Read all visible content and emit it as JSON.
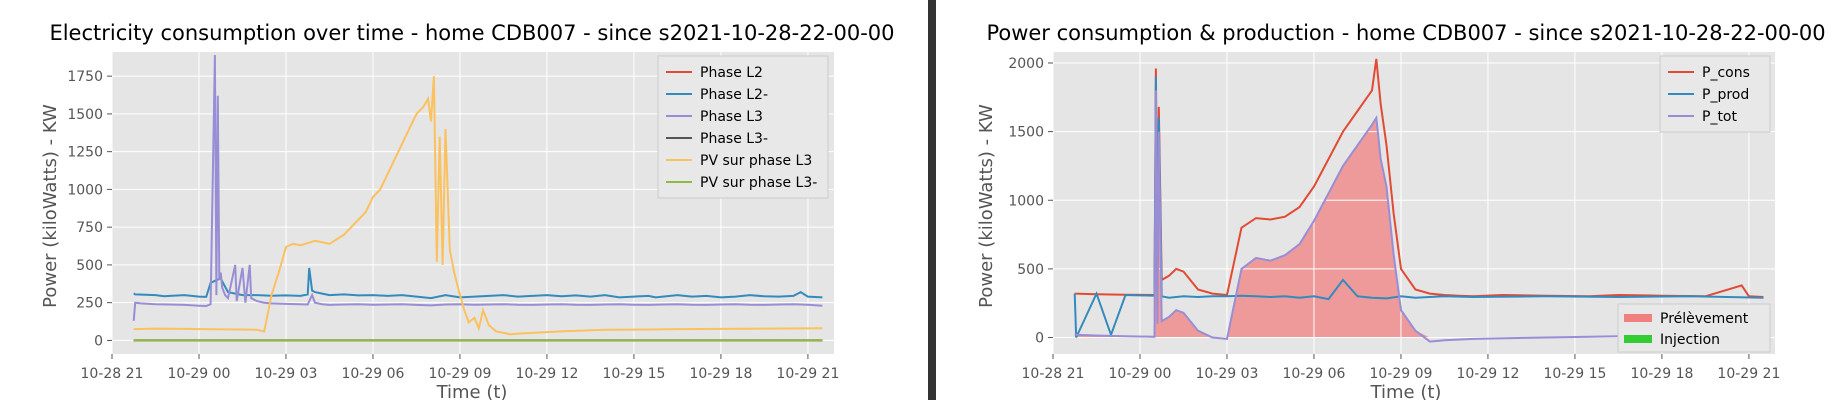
{
  "colors": {
    "background": "#e5e5e5",
    "grid": "#ffffff",
    "divider": "#333333"
  },
  "chart_data": [
    {
      "type": "line",
      "title": "Electricity consumption over time - home CDB007 - since s2021-10-28-22-00-00",
      "xlabel": "Time (t)",
      "ylabel": "Power (kiloWatts) - KW",
      "grid": true,
      "legend": "top-right",
      "x_ticks": [
        "10-28 21",
        "10-29 00",
        "10-29 03",
        "10-29 06",
        "10-29 09",
        "10-29 12",
        "10-29 15",
        "10-29 18",
        "10-29 21"
      ],
      "y_ticks": [
        "0",
        "250",
        "500",
        "750",
        "1000",
        "1250",
        "1500",
        "1750"
      ],
      "x_range_hours": [
        21.0,
        70.8
      ],
      "y_range": [
        -90,
        1910
      ],
      "series": [
        {
          "name": "Phase L2",
          "color": "#e24a33",
          "x": [
            22.5,
            70
          ],
          "y": [
            0,
            0
          ]
        },
        {
          "name": "Phase L2-",
          "color": "#348abd",
          "x": [
            22.5,
            22.6,
            24,
            24.6,
            25,
            26,
            27,
            27.5,
            27.8,
            28,
            28.1,
            28.2,
            28.5,
            29,
            30,
            31,
            32,
            33,
            34,
            34.5,
            34.6,
            34.8,
            35,
            35.5,
            36,
            37,
            38,
            39,
            40,
            41,
            42,
            43,
            44,
            45,
            46,
            47,
            48,
            49,
            50,
            51,
            52,
            53,
            54,
            55,
            56,
            57,
            58,
            58.5,
            59,
            60,
            61,
            62,
            63,
            64,
            65,
            66,
            67,
            68,
            68.5,
            69,
            70
          ],
          "y": [
            312,
            305,
            300,
            292,
            295,
            300,
            290,
            288,
            380,
            390,
            395,
            400,
            410,
            320,
            300,
            300,
            296,
            298,
            295,
            305,
            480,
            330,
            320,
            310,
            300,
            305,
            298,
            300,
            295,
            300,
            290,
            280,
            300,
            285,
            290,
            295,
            300,
            290,
            295,
            300,
            292,
            298,
            290,
            300,
            285,
            290,
            295,
            285,
            290,
            300,
            290,
            295,
            285,
            290,
            300,
            292,
            290,
            295,
            320,
            290,
            285
          ]
        },
        {
          "name": "Phase L3",
          "color": "#988ed5",
          "x": [
            22.5,
            22.6,
            23,
            24,
            25,
            26,
            27,
            27.5,
            27.8,
            28.1,
            28.2,
            28.3,
            28.4,
            28.5,
            28.6,
            28.8,
            29,
            29.5,
            29.6,
            30,
            30.2,
            30.5,
            30.6,
            31,
            31.5,
            32,
            33,
            34,
            34.5,
            34.8,
            35,
            35.5,
            36,
            37,
            38,
            39,
            40,
            41,
            42,
            43,
            44,
            45,
            46,
            47,
            48,
            49,
            50,
            51,
            52,
            53,
            54,
            55,
            56,
            57,
            58,
            59,
            60,
            61,
            62,
            63,
            64,
            65,
            66,
            67,
            68,
            69,
            70
          ],
          "y": [
            130,
            250,
            245,
            240,
            238,
            235,
            230,
            228,
            240,
            1890,
            300,
            1620,
            400,
            450,
            350,
            300,
            280,
            500,
            260,
            480,
            250,
            500,
            280,
            260,
            250,
            245,
            242,
            240,
            238,
            300,
            250,
            240,
            235,
            238,
            240,
            236,
            238,
            240,
            235,
            232,
            238,
            240,
            236,
            238,
            240,
            236,
            235,
            238,
            240,
            236,
            235,
            238,
            240,
            236,
            235,
            238,
            240,
            236,
            235,
            238,
            240,
            236,
            235,
            238,
            240,
            236,
            230
          ]
        },
        {
          "name": "Phase L3-",
          "color": "#555555",
          "x": [
            22.5,
            70
          ],
          "y": [
            0,
            0
          ]
        },
        {
          "name": "PV sur phase L3",
          "color": "#fbc15e",
          "x": [
            22.5,
            24,
            26,
            28,
            30,
            31,
            31.5,
            32,
            32.5,
            32.8,
            33,
            33.5,
            34,
            35,
            36,
            37,
            38,
            38.5,
            39,
            39.5,
            40,
            40.5,
            41,
            41.5,
            42,
            42.5,
            42.8,
            43,
            43.2,
            43.4,
            43.6,
            43.8,
            44,
            44.3,
            44.6,
            45,
            45.3,
            45.6,
            46,
            46.3,
            46.6,
            47,
            47.5,
            48,
            48.5,
            49,
            50,
            52,
            55,
            58,
            60,
            63,
            66,
            70
          ],
          "y": [
            75,
            78,
            76,
            74,
            72,
            70,
            60,
            300,
            450,
            550,
            620,
            640,
            630,
            660,
            640,
            700,
            800,
            850,
            950,
            1000,
            1100,
            1200,
            1300,
            1400,
            1500,
            1550,
            1600,
            1450,
            1750,
            520,
            1350,
            500,
            1400,
            600,
            450,
            300,
            200,
            120,
            150,
            80,
            200,
            100,
            60,
            50,
            40,
            45,
            50,
            60,
            70,
            72,
            75,
            76,
            78,
            80
          ]
        },
        {
          "name": "PV sur phase L3-",
          "color": "#8eba42",
          "x": [
            22.5,
            70
          ],
          "y": [
            0,
            0
          ]
        }
      ]
    },
    {
      "type": "line",
      "title": "Power consumption & production - home CDB007 - since s2021-10-28-22-00-00",
      "xlabel": "Time (t)",
      "ylabel": "Power (kiloWatts) - KW",
      "grid": true,
      "legend": "top-right",
      "x_ticks": [
        "10-28 21",
        "10-29 00",
        "10-29 03",
        "10-29 06",
        "10-29 09",
        "10-29 12",
        "10-29 15",
        "10-29 18",
        "10-29 21"
      ],
      "y_ticks": [
        "0",
        "500",
        "1000",
        "1500",
        "2000"
      ],
      "x_range_hours": [
        21.0,
        70.8
      ],
      "y_range": [
        -120,
        2080
      ],
      "series": [
        {
          "name": "P_cons",
          "color": "#e24a33",
          "x": [
            22.5,
            24,
            26,
            28,
            28.1,
            28.2,
            28.3,
            28.5,
            29,
            29.5,
            30,
            31,
            32,
            33,
            34,
            35,
            36,
            37,
            38,
            39,
            40,
            41,
            42,
            43,
            43.3,
            43.6,
            44,
            44.5,
            45,
            46,
            47,
            48,
            49,
            50,
            52,
            55,
            58,
            60,
            63,
            66,
            68.5,
            69,
            70
          ],
          "y": [
            320,
            315,
            312,
            310,
            1960,
            400,
            1680,
            420,
            450,
            500,
            480,
            350,
            320,
            310,
            800,
            870,
            860,
            880,
            950,
            1100,
            1300,
            1500,
            1650,
            1800,
            2030,
            1700,
            1400,
            900,
            500,
            350,
            320,
            310,
            305,
            300,
            310,
            305,
            300,
            310,
            305,
            300,
            380,
            300,
            295
          ]
        },
        {
          "name": "P_prod",
          "color": "#348abd",
          "x": [
            22.5,
            22.6,
            24,
            25,
            26,
            28,
            28.1,
            28.2,
            28.3,
            28.5,
            29,
            30,
            31,
            32,
            33,
            34,
            35,
            36,
            37,
            38,
            39,
            40,
            41,
            42,
            43,
            44,
            45,
            46,
            47,
            48,
            50,
            55,
            60,
            65,
            70
          ],
          "y": [
            320,
            0,
            320,
            20,
            310,
            305,
            1900,
            300,
            1600,
            300,
            290,
            300,
            295,
            300,
            300,
            305,
            300,
            295,
            300,
            290,
            300,
            280,
            420,
            300,
            290,
            285,
            300,
            290,
            295,
            300,
            295,
            300,
            295,
            300,
            290
          ]
        },
        {
          "name": "P_tot",
          "color": "#988ed5",
          "x": [
            22.5,
            24,
            26,
            28,
            28.1,
            28.2,
            28.3,
            28.5,
            29,
            29.5,
            30,
            31,
            32,
            33,
            34,
            35,
            36,
            37,
            38,
            39,
            40,
            41,
            42,
            43,
            43.3,
            43.6,
            44,
            44.5,
            45,
            46,
            47,
            48,
            50,
            55,
            60,
            65,
            70
          ],
          "y": [
            20,
            15,
            10,
            5,
            1800,
            100,
            1500,
            120,
            150,
            200,
            180,
            50,
            0,
            -10,
            500,
            580,
            560,
            600,
            680,
            850,
            1050,
            1250,
            1400,
            1550,
            1600,
            1300,
            1100,
            600,
            200,
            50,
            -30,
            -20,
            -10,
            0,
            10,
            20,
            30
          ]
        }
      ],
      "fills": [
        {
          "name": "Prélèvement",
          "color": "#f08080"
        },
        {
          "name": "Injection",
          "color": "#33cc33"
        }
      ]
    }
  ]
}
